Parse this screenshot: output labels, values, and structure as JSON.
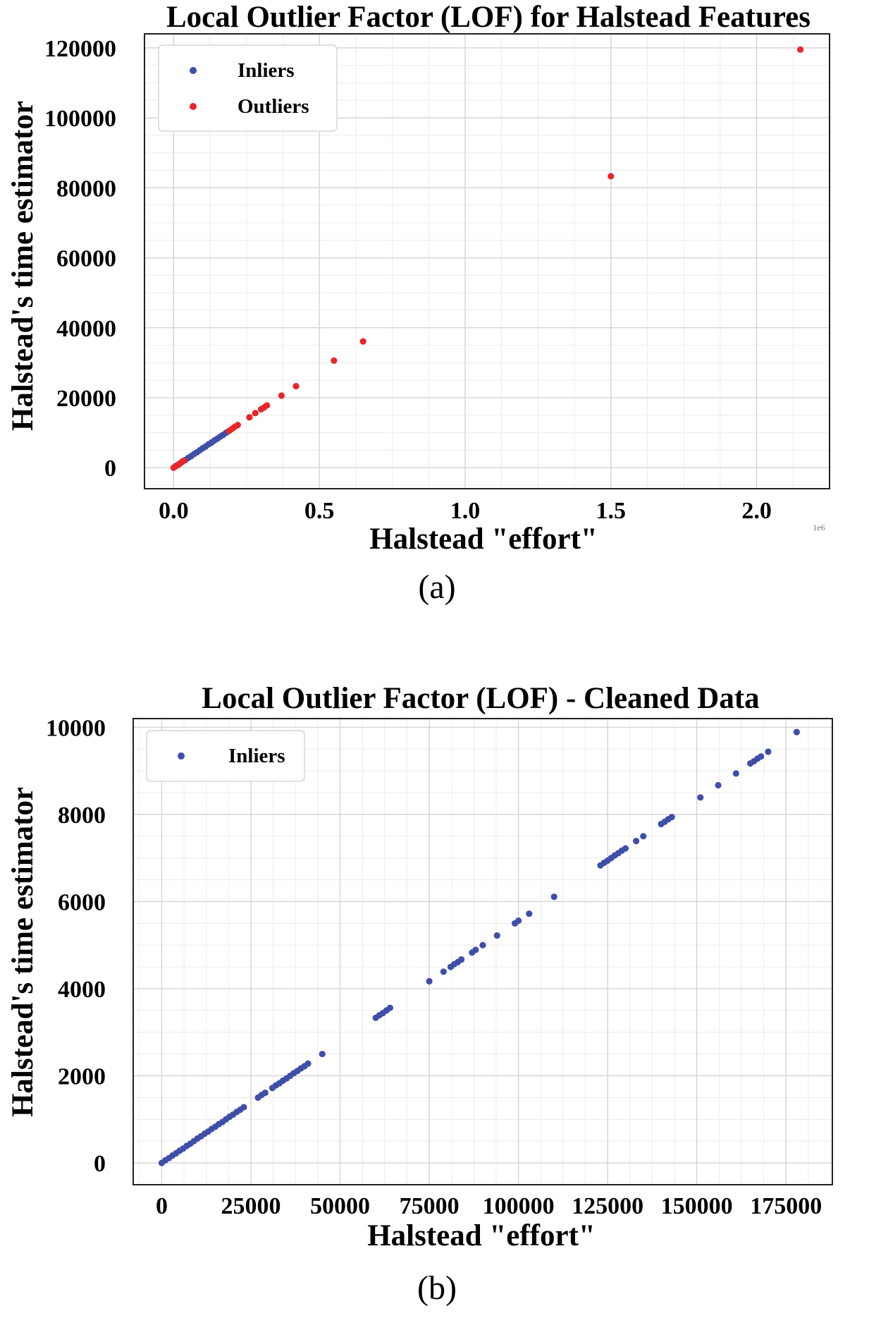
{
  "figure": {
    "panels": [
      "a",
      "b"
    ]
  },
  "chart_data": [
    {
      "panel": "a",
      "type": "scatter",
      "title": "Local Outlier Factor (LOF) for Halstead Features",
      "xlabel": "Halstead \"effort\"",
      "ylabel": "Halstead's time estimator",
      "caption": "(a)",
      "x_offset_label": "1e6",
      "xlim": [
        -0.1,
        2.25
      ],
      "ylim": [
        -6000,
        124000
      ],
      "xticks": [
        0.0,
        0.5,
        1.0,
        1.5,
        2.0
      ],
      "xtick_labels": [
        "0.0",
        "0.5",
        "1.0",
        "1.5",
        "2.0"
      ],
      "yticks": [
        0,
        20000,
        40000,
        60000,
        80000,
        100000,
        120000
      ],
      "ytick_labels": [
        "0",
        "20000",
        "40000",
        "60000",
        "80000",
        "100000",
        "120000"
      ],
      "grid": true,
      "legend": "upper-left",
      "series": [
        {
          "name": "Inliers",
          "color": "#3f4fa8",
          "points": [
            [
              0.01,
              600
            ],
            [
              0.02,
              1100
            ],
            [
              0.03,
              1700
            ],
            [
              0.04,
              2200
            ],
            [
              0.05,
              2800
            ],
            [
              0.06,
              3300
            ],
            [
              0.07,
              3900
            ],
            [
              0.08,
              4400
            ],
            [
              0.09,
              5000
            ],
            [
              0.1,
              5600
            ],
            [
              0.11,
              6100
            ],
            [
              0.12,
              6700
            ],
            [
              0.13,
              7200
            ],
            [
              0.14,
              7800
            ],
            [
              0.15,
              8300
            ],
            [
              0.16,
              8900
            ],
            [
              0.17,
              9400
            ],
            [
              0.18,
              10000
            ]
          ]
        },
        {
          "name": "Outliers",
          "color": "#e8262a",
          "points": [
            [
              0.0,
              0
            ],
            [
              0.005,
              300
            ],
            [
              0.015,
              800
            ],
            [
              0.025,
              1400
            ],
            [
              0.035,
              2000
            ],
            [
              0.19,
              10500
            ],
            [
              0.2,
              11100
            ],
            [
              0.21,
              11700
            ],
            [
              0.22,
              12200
            ],
            [
              0.26,
              14400
            ],
            [
              0.28,
              15600
            ],
            [
              0.3,
              16700
            ],
            [
              0.31,
              17200
            ],
            [
              0.32,
              17800
            ],
            [
              0.37,
              20600
            ],
            [
              0.42,
              23300
            ],
            [
              0.55,
              30600
            ],
            [
              0.65,
              36100
            ],
            [
              1.5,
              83300
            ],
            [
              2.15,
              119500
            ]
          ]
        }
      ]
    },
    {
      "panel": "b",
      "type": "scatter",
      "title": "Local Outlier Factor (LOF) - Cleaned Data",
      "xlabel": "Halstead \"effort\"",
      "ylabel": "Halstead's time estimator",
      "caption": "(b)",
      "xlim": [
        -8000,
        188000
      ],
      "ylim": [
        -500,
        10200
      ],
      "xticks": [
        0,
        25000,
        50000,
        75000,
        100000,
        125000,
        150000,
        175000
      ],
      "xtick_labels": [
        "0",
        "25000",
        "50000",
        "75000",
        "100000",
        "125000",
        "150000",
        "175000"
      ],
      "yticks": [
        0,
        2000,
        4000,
        6000,
        8000,
        10000
      ],
      "ytick_labels": [
        "0",
        "2000",
        "4000",
        "6000",
        "8000",
        "10000"
      ],
      "grid": true,
      "legend": "upper-left",
      "series": [
        {
          "name": "Inliers",
          "color": "#3f4fa8",
          "points": [
            [
              0,
              0
            ],
            [
              1000,
              60
            ],
            [
              2000,
              110
            ],
            [
              3000,
              170
            ],
            [
              4000,
              220
            ],
            [
              5000,
              280
            ],
            [
              6000,
              330
            ],
            [
              7000,
              390
            ],
            [
              8000,
              440
            ],
            [
              9000,
              500
            ],
            [
              10000,
              560
            ],
            [
              11000,
              610
            ],
            [
              12000,
              670
            ],
            [
              13000,
              720
            ],
            [
              14000,
              780
            ],
            [
              15000,
              830
            ],
            [
              16000,
              890
            ],
            [
              17000,
              940
            ],
            [
              18000,
              1000
            ],
            [
              19000,
              1060
            ],
            [
              20000,
              1110
            ],
            [
              21000,
              1170
            ],
            [
              22000,
              1220
            ],
            [
              23000,
              1280
            ],
            [
              27000,
              1500
            ],
            [
              28000,
              1560
            ],
            [
              29000,
              1610
            ],
            [
              31000,
              1720
            ],
            [
              32000,
              1780
            ],
            [
              33000,
              1830
            ],
            [
              34000,
              1890
            ],
            [
              35000,
              1940
            ],
            [
              36000,
              2000
            ],
            [
              37000,
              2060
            ],
            [
              38000,
              2110
            ],
            [
              39000,
              2170
            ],
            [
              40000,
              2220
            ],
            [
              41000,
              2280
            ],
            [
              45000,
              2500
            ],
            [
              60000,
              3330
            ],
            [
              61000,
              3390
            ],
            [
              62000,
              3440
            ],
            [
              63000,
              3500
            ],
            [
              64000,
              3560
            ],
            [
              75000,
              4170
            ],
            [
              79000,
              4390
            ],
            [
              81000,
              4500
            ],
            [
              82000,
              4560
            ],
            [
              83000,
              4610
            ],
            [
              84000,
              4670
            ],
            [
              87000,
              4830
            ],
            [
              88000,
              4890
            ],
            [
              90000,
              5000
            ],
            [
              94000,
              5220
            ],
            [
              99000,
              5500
            ],
            [
              100000,
              5560
            ],
            [
              103000,
              5720
            ],
            [
              110000,
              6110
            ],
            [
              123000,
              6830
            ],
            [
              124000,
              6890
            ],
            [
              125000,
              6940
            ],
            [
              126000,
              7000
            ],
            [
              127000,
              7060
            ],
            [
              128000,
              7110
            ],
            [
              129000,
              7170
            ],
            [
              130000,
              7220
            ],
            [
              133000,
              7390
            ],
            [
              135000,
              7500
            ],
            [
              140000,
              7780
            ],
            [
              141000,
              7830
            ],
            [
              142000,
              7890
            ],
            [
              143000,
              7940
            ],
            [
              151000,
              8390
            ],
            [
              156000,
              8670
            ],
            [
              161000,
              8940
            ],
            [
              165000,
              9170
            ],
            [
              166000,
              9220
            ],
            [
              167000,
              9280
            ],
            [
              168000,
              9330
            ],
            [
              170000,
              9440
            ],
            [
              178000,
              9890
            ]
          ]
        }
      ]
    }
  ]
}
